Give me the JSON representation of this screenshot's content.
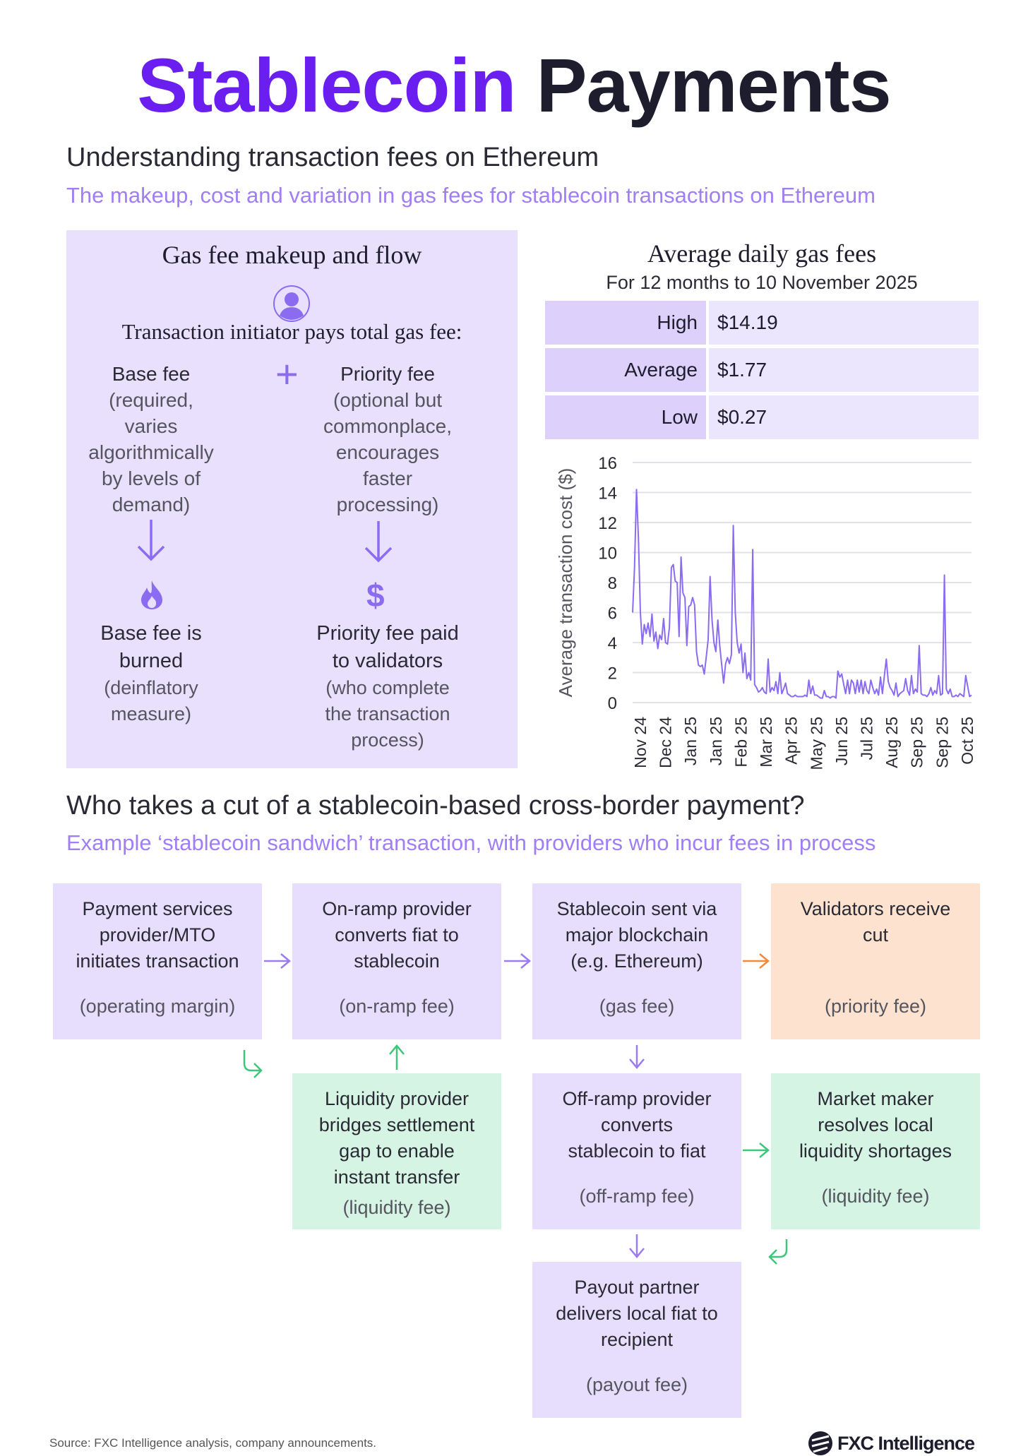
{
  "title": {
    "part1": "Stablecoin",
    "part2": "Payments"
  },
  "section1": {
    "heading": "Understanding transaction fees on Ethereum",
    "subheading": "The makeup, cost and variation in gas fees for stablecoin transactions on Ethereum"
  },
  "panel": {
    "title": "Gas fee makeup and flow",
    "initiator": "Transaction initiator pays total gas fee:",
    "plus": "+",
    "base": {
      "title": "Base fee",
      "desc": [
        "(required, varies",
        "algorithmically",
        "by levels of",
        "demand)"
      ],
      "result": [
        "Base fee is",
        "burned"
      ],
      "result_desc": [
        "(deinflatory",
        "measure)"
      ]
    },
    "priority": {
      "title": "Priority fee",
      "desc": [
        "(optional but",
        "commonplace,",
        "encourages",
        "faster",
        "processing)"
      ],
      "result": [
        "Priority fee paid",
        "to validators"
      ],
      "result_desc": [
        "(who complete",
        "the transaction",
        "process)"
      ]
    },
    "dollar": "$"
  },
  "stats": {
    "title": "Average daily gas fees",
    "subtitle": "For 12 months to 10 November 2025",
    "rows": [
      {
        "label": "High",
        "value": "$14.19"
      },
      {
        "label": "Average",
        "value": "$1.77"
      },
      {
        "label": "Low",
        "value": "$0.27"
      }
    ]
  },
  "chart_data": {
    "type": "line",
    "ylabel": "Average transaction cost ($)",
    "ylim": [
      0,
      16
    ],
    "yticks": [
      "0",
      "2",
      "4",
      "6",
      "8",
      "10",
      "12",
      "14",
      "16"
    ],
    "xticks": [
      "Nov 24",
      "Dec 24",
      "Jan 25",
      "Jan 25",
      "Feb 25",
      "Mar 25",
      "Apr 25",
      "May 25",
      "Jun 25",
      "Jul 25",
      "Aug 25",
      "Sep 25",
      "Sep 25",
      "Oct 25"
    ],
    "grid": true,
    "color": "#8b6cf0",
    "values": [
      6,
      9,
      14.2,
      11,
      6,
      3.9,
      5.2,
      4.6,
      5.3,
      4.4,
      5.9,
      4.1,
      4.7,
      3.6,
      4.5,
      4.2,
      5.6,
      4,
      3.9,
      5,
      9,
      9.2,
      8.1,
      8,
      4.4,
      9.7,
      7.3,
      7,
      3.8,
      6.4,
      6.5,
      7,
      6.5,
      3.4,
      2.5,
      2.4,
      2.5,
      1.9,
      3,
      4.2,
      8.4,
      5.5,
      4,
      3.4,
      5.5,
      3.8,
      2.5,
      1.3,
      2.6,
      3,
      2.6,
      3.2,
      11.8,
      6,
      4,
      3.3,
      3.9,
      2,
      3.3,
      1.6,
      2,
      1.5,
      10.2,
      1.2,
      1,
      0.7,
      0.8,
      1,
      0.7,
      0.6,
      2.9,
      0.7,
      1,
      0.8,
      1.4,
      0.6,
      2,
      0.6,
      0.9,
      1.3,
      0.6,
      0.5,
      0.4,
      0.4,
      0.5,
      0.4,
      0.4,
      0.4,
      0.4,
      0.5,
      0.4,
      1.5,
      0.6,
      1.1,
      0.5,
      0.5,
      0.4,
      0.3,
      0.3,
      0.8,
      0.4,
      0.4,
      0.3,
      0.4,
      0.4,
      0.3,
      2.1,
      1.7,
      1.9,
      1.2,
      0.6,
      1.5,
      0.6,
      1.5,
      1.3,
      0.6,
      1.5,
      0.7,
      1.5,
      0.6,
      1.4,
      0.8,
      0.6,
      1.5,
      1,
      0.6,
      0.9,
      0.5,
      1.7,
      0.6,
      1.8,
      2.9,
      1.4,
      1,
      0.8,
      0.5,
      1.3,
      0.4,
      0.6,
      0.7,
      0.8,
      1.6,
      0.8,
      0.5,
      1.8,
      0.6,
      0.9,
      0.7,
      3.8,
      0.6,
      0.5,
      0.5,
      0.4,
      0.6,
      1,
      0.5,
      0.8,
      0.6,
      1.8,
      0.5,
      0.6,
      8.5,
      0.9,
      0.6,
      0.9,
      0.4,
      0.4,
      0.5,
      0.4,
      0.6,
      0.5,
      0.4,
      1.8,
      1.1,
      0.4,
      0.5
    ]
  },
  "section2": {
    "heading": "Who takes a cut of a stablecoin-based cross-border payment?",
    "subheading": "Example ‘stablecoin sandwich’ transaction, with providers who incur fees in process"
  },
  "flow": [
    {
      "title": [
        "Payment services",
        "provider/MTO",
        "initiates transaction"
      ],
      "fee": "(operating margin)"
    },
    {
      "title": [
        "On-ramp provider",
        "converts fiat to",
        "stablecoin"
      ],
      "fee": "(on-ramp fee)"
    },
    {
      "title": [
        "Stablecoin sent via",
        "major blockchain",
        "(e.g. Ethereum)"
      ],
      "fee": "(gas fee)"
    },
    {
      "title": [
        "Validators receive",
        "cut"
      ],
      "fee": "(priority fee)"
    },
    {
      "title": [
        "Liquidity provider",
        "bridges settlement",
        "gap to enable",
        "instant transfer"
      ],
      "fee": "(liquidity fee)"
    },
    {
      "title": [
        "Off-ramp provider",
        "converts",
        "stablecoin to fiat"
      ],
      "fee": "(off-ramp fee)"
    },
    {
      "title": [
        "Market maker",
        "resolves local",
        "liquidity shortages"
      ],
      "fee": "(liquidity fee)"
    },
    {
      "title": [
        "Payout partner",
        "delivers local fiat to",
        "recipient"
      ],
      "fee": "(payout fee)"
    }
  ],
  "footer": {
    "source": "Source: FXC Intelligence analysis, company announcements.",
    "brand": "FXC Intelligence"
  }
}
